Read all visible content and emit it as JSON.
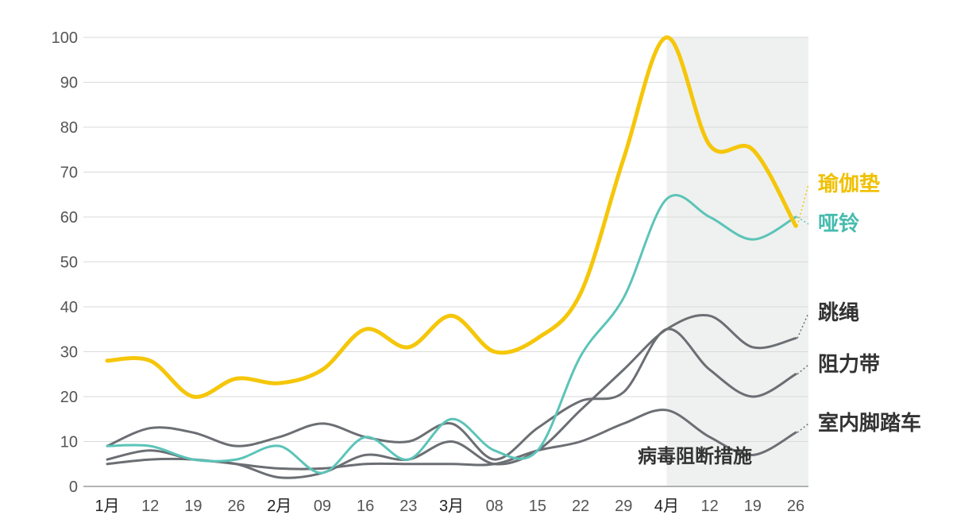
{
  "chart_data": {
    "type": "line",
    "x": [
      "1月",
      "12",
      "19",
      "26",
      "2月",
      "09",
      "16",
      "23",
      "3月",
      "08",
      "15",
      "22",
      "29",
      "4月",
      "12",
      "19",
      "26"
    ],
    "ylim": [
      0,
      100
    ],
    "yticks": [
      0,
      10,
      20,
      30,
      40,
      50,
      60,
      70,
      80,
      90,
      100
    ],
    "grid": true,
    "series": [
      {
        "name": "瑜伽垫",
        "color": "#F5C60A",
        "values": [
          28,
          28,
          20,
          24,
          23,
          26,
          35,
          31,
          38,
          30,
          33,
          43,
          73,
          100,
          76,
          75,
          58
        ]
      },
      {
        "name": "哑铃",
        "color": "#5BC4B8",
        "values": [
          9,
          9,
          6,
          6,
          9,
          3,
          11,
          6,
          15,
          8,
          8,
          29,
          42,
          64,
          60,
          55,
          60
        ]
      },
      {
        "name": "跳绳",
        "color": "#6B6E73",
        "values": [
          6,
          8,
          6,
          5,
          2,
          3,
          7,
          6,
          10,
          5,
          8,
          17,
          26,
          35,
          38,
          31,
          33
        ]
      },
      {
        "name": "阻力带",
        "color": "#6B6E73",
        "values": [
          9,
          13,
          12,
          9,
          11,
          14,
          11,
          10,
          14,
          6,
          13,
          19,
          21,
          35,
          26,
          20,
          25
        ]
      },
      {
        "name": "室内脚踏车",
        "color": "#6B6E73",
        "values": [
          5,
          6,
          6,
          5,
          4,
          4,
          5,
          5,
          5,
          5,
          8,
          10,
          14,
          17,
          11,
          7,
          12
        ]
      }
    ],
    "annotations": [
      {
        "text": "病毒阻断措施",
        "start_x": "4月"
      }
    ]
  }
}
